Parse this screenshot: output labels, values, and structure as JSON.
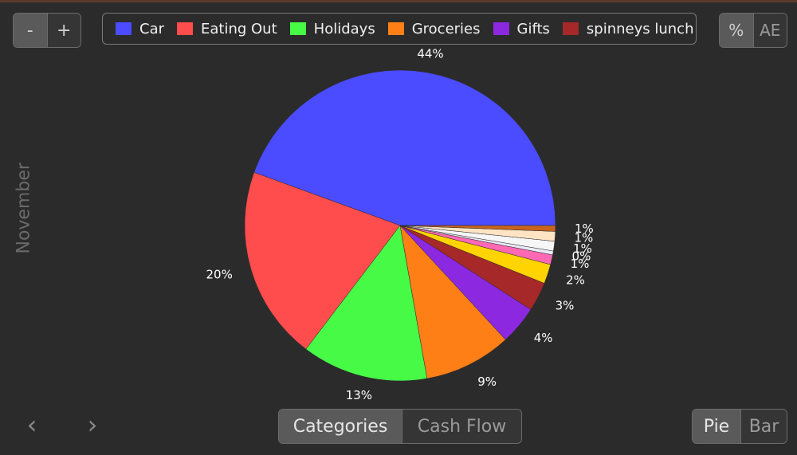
{
  "zoom": {
    "minus_label": "-",
    "plus_label": "+"
  },
  "legend": [
    {
      "label": "Car",
      "color": "#4b4bff"
    },
    {
      "label": "Eating Out",
      "color": "#ff4c4c"
    },
    {
      "label": "Holidays",
      "color": "#46fa46"
    },
    {
      "label": "Groceries",
      "color": "#ff7f17"
    },
    {
      "label": "Gifts",
      "color": "#8c28e0"
    },
    {
      "label": "spinneys lunch",
      "color": "#a62828"
    },
    {
      "label": "",
      "color": "#ffd400"
    }
  ],
  "units": {
    "percent_label": "%",
    "currency_label": "AE"
  },
  "period": {
    "month": "November"
  },
  "chart_data": {
    "type": "pie",
    "slices": [
      {
        "category": "Car",
        "value": 44,
        "label": "44%",
        "color": "#4b4bff"
      },
      {
        "category": "Eating Out",
        "value": 20,
        "label": "20%",
        "color": "#ff4c4c"
      },
      {
        "category": "Holidays",
        "value": 13,
        "label": "13%",
        "color": "#46fa46"
      },
      {
        "category": "Groceries",
        "value": 9,
        "label": "9%",
        "color": "#ff7f17"
      },
      {
        "category": "Gifts",
        "value": 4,
        "label": "4%",
        "color": "#8c28e0"
      },
      {
        "category": "spinneys lunch",
        "value": 3,
        "label": "3%",
        "color": "#a62828"
      },
      {
        "category": "",
        "value": 2,
        "label": "2%",
        "color": "#ffd400"
      },
      {
        "category": "",
        "value": 1,
        "label": "1%",
        "color": "#ff69b4"
      },
      {
        "category": "",
        "value": 0.4,
        "label": "0%",
        "color": "#eaeaf5"
      },
      {
        "category": "",
        "value": 1,
        "label": "1%",
        "color": "#f6f6f6"
      },
      {
        "category": "",
        "value": 1,
        "label": "1%",
        "color": "#ffe4c4"
      },
      {
        "category": "",
        "value": 0.6,
        "label": "1%",
        "color": "#c8641e"
      }
    ]
  },
  "nav": {
    "prev_label": "‹",
    "next_label": "›"
  },
  "view_toggle": {
    "categories_label": "Categories",
    "cashflow_label": "Cash Flow"
  },
  "chart_type_toggle": {
    "pie_label": "Pie",
    "bar_label": "Bar"
  }
}
